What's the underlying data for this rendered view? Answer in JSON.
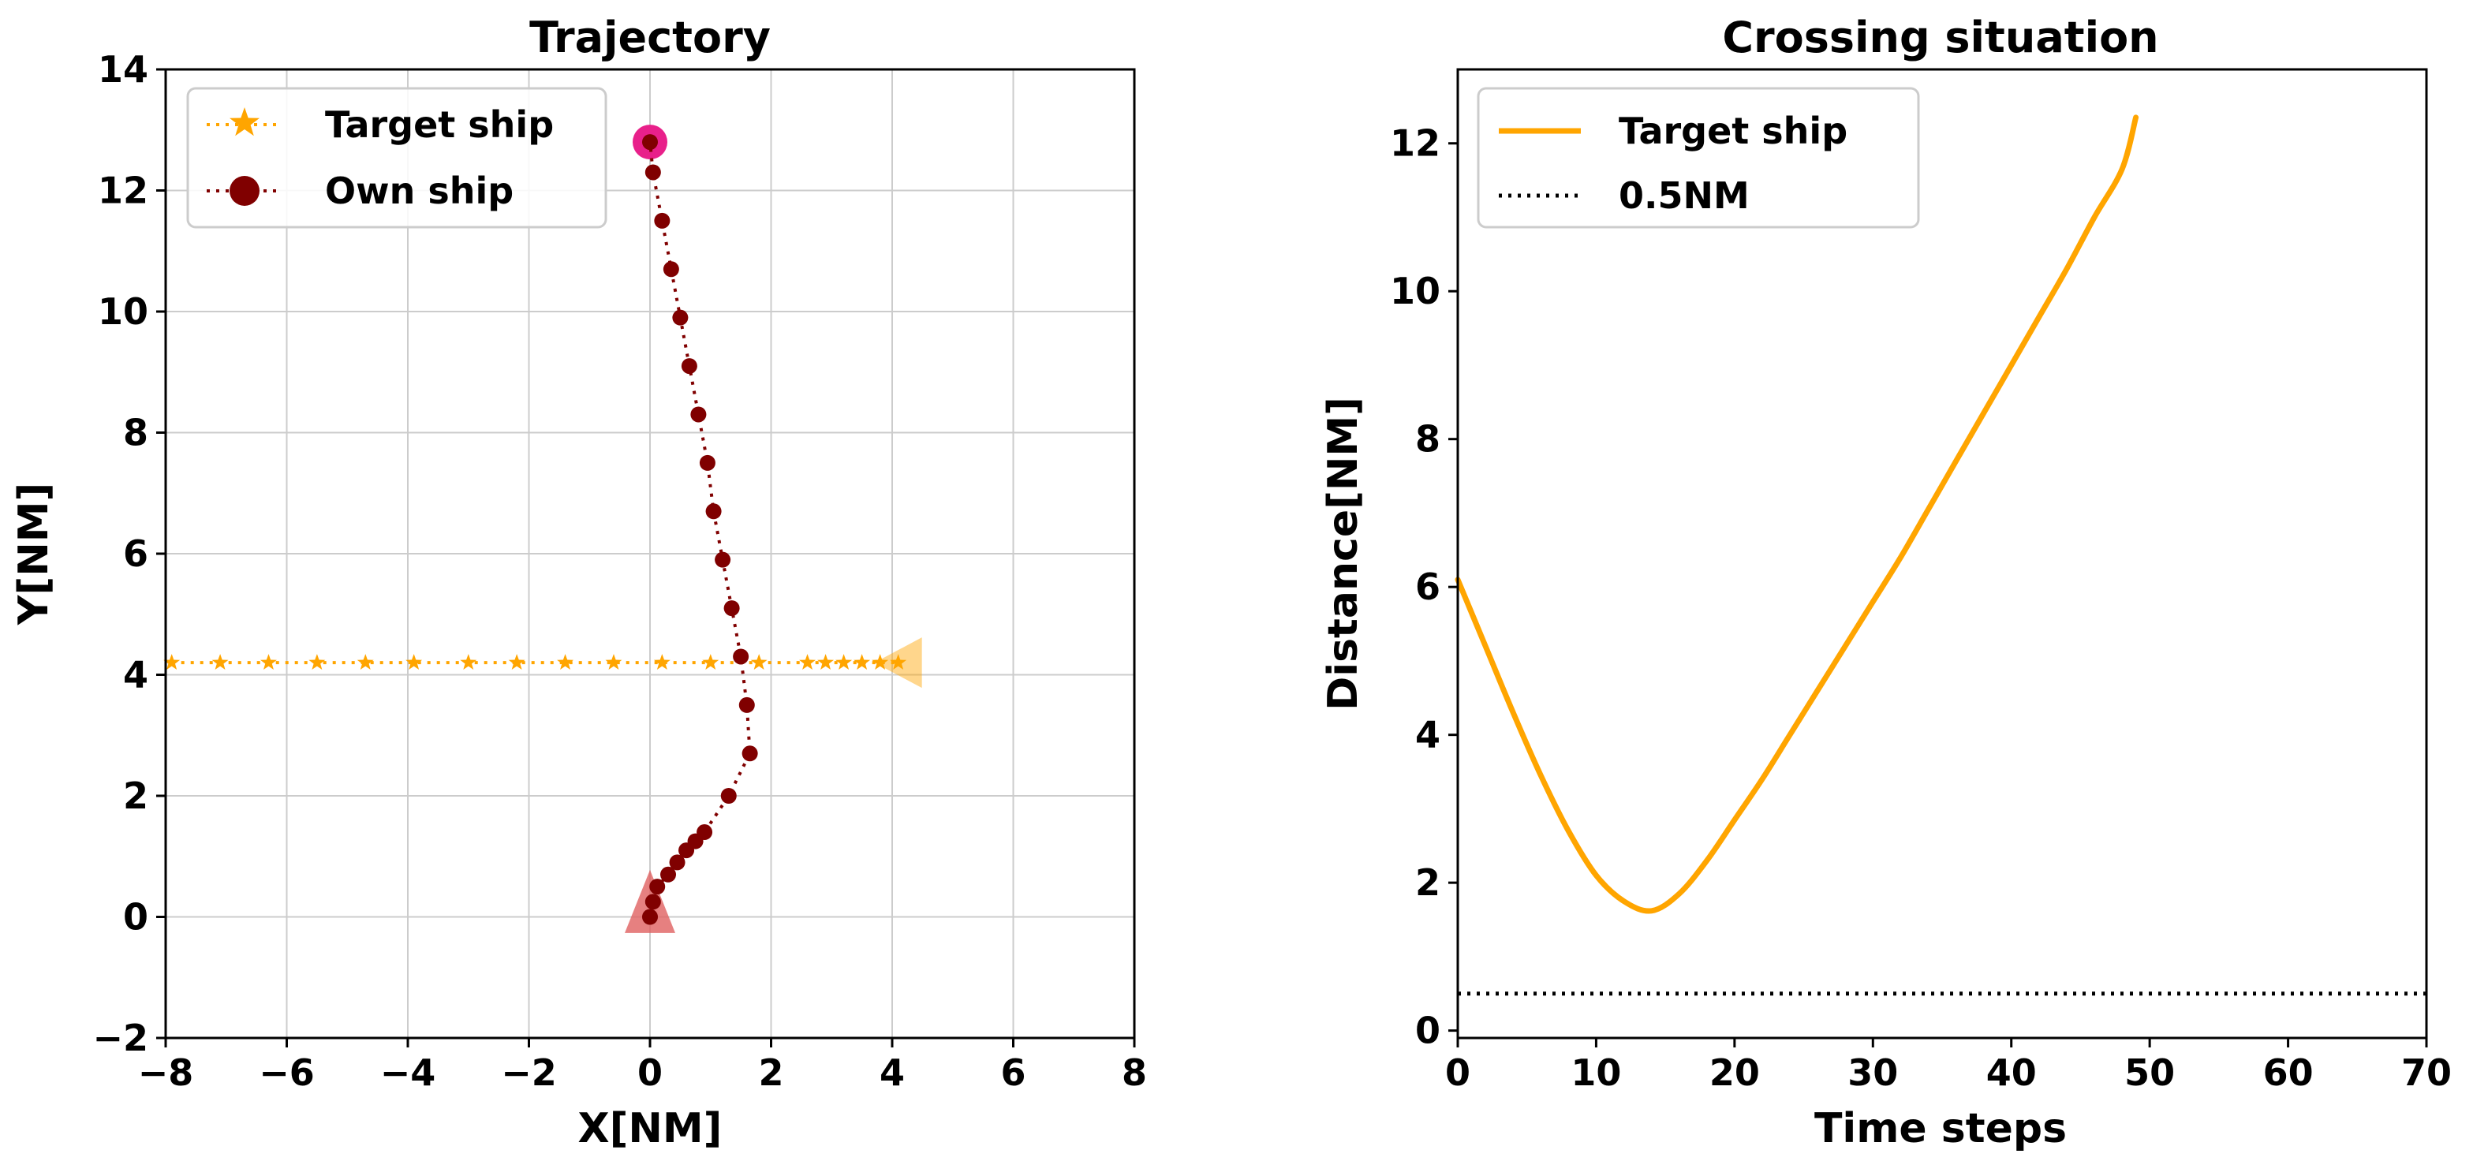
{
  "figure_caption": "",
  "colors": {
    "target": "#FFA500",
    "own": "#800000",
    "own_start_marker": "#E06060",
    "own_end_marker": "#E8208A",
    "grid": "#CCCCCC",
    "threshold": "#000000"
  },
  "chart_data": [
    {
      "id": "trajectory",
      "type": "line",
      "title": "Trajectory",
      "xlabel": "X[NM]",
      "ylabel": "Y[NM]",
      "xlim": [
        -8,
        8
      ],
      "ylim": [
        -2,
        14
      ],
      "xticks": [
        -8,
        -6,
        -4,
        -2,
        0,
        2,
        4,
        6,
        8
      ],
      "yticks": [
        -2,
        0,
        2,
        4,
        6,
        8,
        10,
        12,
        14
      ],
      "xtick_labels": [
        "−8",
        "−6",
        "−4",
        "−2",
        "0",
        "2",
        "4",
        "6",
        "8"
      ],
      "ytick_labels": [
        "−2",
        "0",
        "2",
        "4",
        "6",
        "8",
        "10",
        "12",
        "14"
      ],
      "grid": true,
      "legend": {
        "position": "top-left",
        "entries": [
          "Target ship",
          "Own ship"
        ]
      },
      "series": [
        {
          "name": "Target ship",
          "marker": "star",
          "linestyle": "dotted",
          "color": "#FFA500",
          "x": [
            -7.9,
            -7.1,
            -6.3,
            -5.5,
            -4.7,
            -3.9,
            -3.0,
            -2.2,
            -1.4,
            -0.6,
            0.2,
            1.0,
            1.8,
            2.6,
            2.9,
            3.2,
            3.5,
            3.8,
            4.1
          ],
          "y": [
            4.2,
            4.2,
            4.2,
            4.2,
            4.2,
            4.2,
            4.2,
            4.2,
            4.2,
            4.2,
            4.2,
            4.2,
            4.2,
            4.2,
            4.2,
            4.2,
            4.2,
            4.2,
            4.2
          ],
          "start_marker": {
            "shape": "triangle-left",
            "x": 4.1,
            "y": 4.2
          }
        },
        {
          "name": "Own ship",
          "marker": "circle",
          "linestyle": "dotted",
          "color": "#800000",
          "x": [
            0.0,
            0.05,
            0.12,
            0.3,
            0.45,
            0.6,
            0.75,
            0.9,
            1.3,
            1.65,
            1.6,
            1.5,
            1.35,
            1.2,
            1.05,
            0.95,
            0.8,
            0.65,
            0.5,
            0.35,
            0.2,
            0.05,
            0.0
          ],
          "y": [
            0.0,
            0.25,
            0.5,
            0.7,
            0.9,
            1.1,
            1.25,
            1.4,
            2.0,
            2.7,
            3.5,
            4.3,
            5.1,
            5.9,
            6.7,
            7.5,
            8.3,
            9.1,
            9.9,
            10.7,
            11.5,
            12.3,
            12.8
          ],
          "start_marker": {
            "shape": "triangle-up",
            "x": 0.0,
            "y": 0.1
          },
          "end_marker": {
            "shape": "ring",
            "x": 0.0,
            "y": 12.8
          }
        }
      ]
    },
    {
      "id": "crossing",
      "type": "line",
      "title": "Crossing situation",
      "xlabel": "Time steps",
      "ylabel": "Distance[NM]",
      "xlim": [
        0,
        70
      ],
      "ylim": [
        -0.1,
        13
      ],
      "xticks": [
        0,
        10,
        20,
        30,
        40,
        50,
        60,
        70
      ],
      "yticks": [
        0,
        2,
        4,
        6,
        8,
        10,
        12
      ],
      "xtick_labels": [
        "0",
        "10",
        "20",
        "30",
        "40",
        "50",
        "60",
        "70"
      ],
      "ytick_labels": [
        "0",
        "2",
        "4",
        "6",
        "8",
        "10",
        "12"
      ],
      "grid": false,
      "legend": {
        "position": "top-left",
        "entries": [
          "Target ship",
          "0.5NM"
        ]
      },
      "series": [
        {
          "name": "Target ship",
          "linestyle": "solid",
          "color": "#FFA500",
          "x": [
            0,
            2,
            4,
            6,
            8,
            10,
            12,
            14,
            16,
            18,
            20,
            22,
            24,
            26,
            28,
            30,
            32,
            34,
            36,
            38,
            40,
            42,
            44,
            46,
            48,
            49
          ],
          "y": [
            6.1,
            5.2,
            4.3,
            3.45,
            2.7,
            2.1,
            1.75,
            1.62,
            1.85,
            2.3,
            2.85,
            3.4,
            4.0,
            4.6,
            5.2,
            5.8,
            6.4,
            7.05,
            7.7,
            8.35,
            9.0,
            9.65,
            10.3,
            11.0,
            11.65,
            12.35
          ]
        },
        {
          "name": "0.5NM",
          "linestyle": "dotted",
          "color": "#000000",
          "x": [
            0,
            70
          ],
          "y": [
            0.5,
            0.5
          ]
        }
      ]
    }
  ]
}
